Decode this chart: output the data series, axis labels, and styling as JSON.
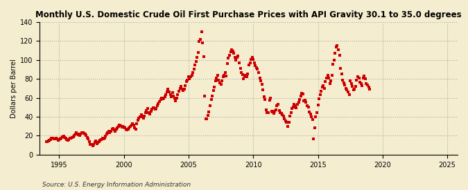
{
  "title": "Monthly U.S. Domestic Crude Oil First Purchase Prices with API Gravity 30.1 to 35.0 degrees",
  "ylabel": "Dollars per Barrel",
  "source": "Source: U.S. Energy Information Administration",
  "background_color": "#F5EDCF",
  "plot_bg_color": "#F5EDCF",
  "dot_color": "#CC0000",
  "ylim": [
    0,
    140
  ],
  "yticks": [
    0,
    20,
    40,
    60,
    80,
    100,
    120,
    140
  ],
  "xlim_start": 1993.5,
  "xlim_end": 2025.8,
  "xticks": [
    1995,
    2000,
    2005,
    2010,
    2015,
    2020,
    2025
  ],
  "prices": [
    13.5,
    14.0,
    14.5,
    14.8,
    16.0,
    17.2,
    17.0,
    16.8,
    16.5,
    17.0,
    16.8,
    15.5,
    16.0,
    16.5,
    17.5,
    18.5,
    19.5,
    18.0,
    17.0,
    16.2,
    15.5,
    16.2,
    17.0,
    17.5,
    18.0,
    19.0,
    20.2,
    21.5,
    23.0,
    22.0,
    21.0,
    20.5,
    22.0,
    23.5,
    23.0,
    22.5,
    21.5,
    20.0,
    18.0,
    16.5,
    13.5,
    11.0,
    10.5,
    9.5,
    10.5,
    13.0,
    14.5,
    11.5,
    13.0,
    13.5,
    15.0,
    16.0,
    17.5,
    16.5,
    17.0,
    19.5,
    21.5,
    23.5,
    24.5,
    23.5,
    24.5,
    26.5,
    27.5,
    26.0,
    25.0,
    26.5,
    28.0,
    30.0,
    31.0,
    30.5,
    29.0,
    29.5,
    29.0,
    28.0,
    27.0,
    26.0,
    27.0,
    28.0,
    29.5,
    31.5,
    32.5,
    31.0,
    28.5,
    27.0,
    33.0,
    36.0,
    38.5,
    40.0,
    42.0,
    40.0,
    38.5,
    41.0,
    44.0,
    46.5,
    48.5,
    44.5,
    43.0,
    46.0,
    48.0,
    49.5,
    49.5,
    48.0,
    49.0,
    52.0,
    54.0,
    56.0,
    58.0,
    59.5,
    59.0,
    59.5,
    61.0,
    63.5,
    66.0,
    69.5,
    66.0,
    63.0,
    61.5,
    65.5,
    62.0,
    60.0,
    57.0,
    60.0,
    63.0,
    67.0,
    70.0,
    72.0,
    69.0,
    67.5,
    69.5,
    73.0,
    77.0,
    79.0,
    82.0,
    80.0,
    82.0,
    84.0,
    87.0,
    90.5,
    95.0,
    98.0,
    103.0,
    108.0,
    119.5,
    121.5,
    130.0,
    118.0,
    103.5,
    62.0,
    38.0,
    37.5,
    41.5,
    45.0,
    51.5,
    58.0,
    62.0,
    68.0,
    71.5,
    78.0,
    81.0,
    84.0,
    79.0,
    76.0,
    74.0,
    78.0,
    82.0,
    84.0,
    86.5,
    83.0,
    96.0,
    102.0,
    105.0,
    108.5,
    110.5,
    109.0,
    107.0,
    102.5,
    100.0,
    102.5,
    104.0,
    97.0,
    91.0,
    86.5,
    84.5,
    80.0,
    82.0,
    84.0,
    82.0,
    85.0,
    94.5,
    97.0,
    100.5,
    102.5,
    100.5,
    97.0,
    94.0,
    92.0,
    90.0,
    86.5,
    81.0,
    78.0,
    74.0,
    68.5,
    61.0,
    58.0,
    47.0,
    44.0,
    44.5,
    57.5,
    59.5,
    45.5,
    45.0,
    43.5,
    46.0,
    47.5,
    52.0,
    53.0,
    46.5,
    44.0,
    43.5,
    42.0,
    40.5,
    37.5,
    35.5,
    34.5,
    30.0,
    34.0,
    40.5,
    44.0,
    48.5,
    50.5,
    53.0,
    52.0,
    49.5,
    53.0,
    55.5,
    58.0,
    62.0,
    65.0,
    64.0,
    57.0,
    57.5,
    55.0,
    52.0,
    50.5,
    45.0,
    43.0,
    40.0,
    37.0,
    16.5,
    28.0,
    40.0,
    44.5,
    52.5,
    59.0,
    63.0,
    67.0,
    71.0,
    73.0,
    70.0,
    77.0,
    80.5,
    84.0,
    81.0,
    75.0,
    78.0,
    84.0,
    95.5,
    100.0,
    107.0,
    113.5,
    115.0,
    111.0,
    105.0,
    91.0,
    85.0,
    78.5,
    76.0,
    73.5,
    70.0,
    68.5,
    66.0,
    63.5,
    78.0,
    75.0,
    72.0,
    68.5,
    69.5,
    72.0,
    79.0,
    82.5,
    81.0,
    76.5,
    75.0,
    73.0,
    80.5,
    83.0,
    80.0,
    75.0,
    73.5,
    71.5,
    69.0
  ],
  "start_year": 1994,
  "start_month": 1
}
